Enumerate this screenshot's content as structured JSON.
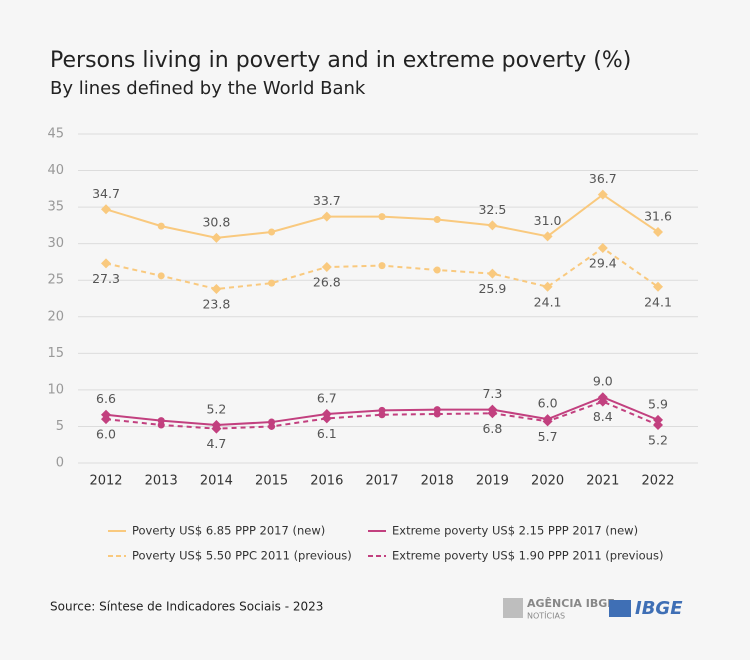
{
  "chart_data": {
    "type": "line",
    "title": "Persons living in poverty and in extreme poverty (%)",
    "subtitle": "By lines defined by the World Bank",
    "categories": [
      "2012",
      "2013",
      "2014",
      "2015",
      "2016",
      "2017",
      "2018",
      "2019",
      "2020",
      "2021",
      "2022"
    ],
    "ylim": [
      0,
      45
    ],
    "yticks": [
      0,
      5,
      10,
      15,
      20,
      25,
      30,
      35,
      40,
      45
    ],
    "grid": true,
    "series": [
      {
        "name": "Poverty US$ 6.85 PPP 2017 (new)",
        "color": "#f9c97e",
        "dash": false,
        "label_position": "above",
        "values": [
          34.7,
          32.4,
          30.8,
          31.6,
          33.7,
          33.7,
          33.3,
          32.5,
          31.0,
          36.7,
          31.6
        ],
        "value_labels": [
          "34.7",
          null,
          "30.8",
          null,
          "33.7",
          null,
          null,
          "32.5",
          "31.0",
          "36.7",
          "31.6"
        ]
      },
      {
        "name": "Poverty US$ 5.50 PPC 2011 (previous)",
        "color": "#f9c97e",
        "dash": true,
        "label_position": "below",
        "values": [
          27.3,
          25.6,
          23.8,
          24.6,
          26.8,
          27.0,
          26.4,
          25.9,
          24.1,
          29.4,
          24.1
        ],
        "value_labels": [
          "27.3",
          null,
          "23.8",
          null,
          "26.8",
          null,
          null,
          "25.9",
          "24.1",
          "29.4",
          "24.1"
        ]
      },
      {
        "name": "Extreme poverty US$ 2.15 PPP 2017 (new)",
        "color": "#c2407f",
        "dash": false,
        "label_position": "above",
        "values": [
          6.6,
          5.8,
          5.2,
          5.6,
          6.7,
          7.2,
          7.3,
          7.3,
          6.0,
          9.0,
          5.9
        ],
        "value_labels": [
          "6.6",
          null,
          "5.2",
          null,
          "6.7",
          null,
          null,
          "7.3",
          "6.0",
          "9.0",
          "5.9"
        ]
      },
      {
        "name": "Extreme poverty US$ 1.90 PPP 2011 (previous)",
        "color": "#c2407f",
        "dash": true,
        "label_position": "below",
        "values": [
          6.0,
          5.2,
          4.7,
          5.0,
          6.1,
          6.6,
          6.7,
          6.8,
          5.7,
          8.4,
          5.2
        ],
        "value_labels": [
          "6.0",
          null,
          "4.7",
          null,
          "6.1",
          null,
          null,
          "6.8",
          "5.7",
          "8.4",
          "5.2"
        ]
      }
    ]
  },
  "footer": {
    "source": "Source: Síntese de Indicadores Sociais - 2023",
    "logo_agency": "AGÊNCIA IBGE",
    "logo_agency_sub": "NOTÍCIAS",
    "logo_ibge": "IBGE"
  }
}
